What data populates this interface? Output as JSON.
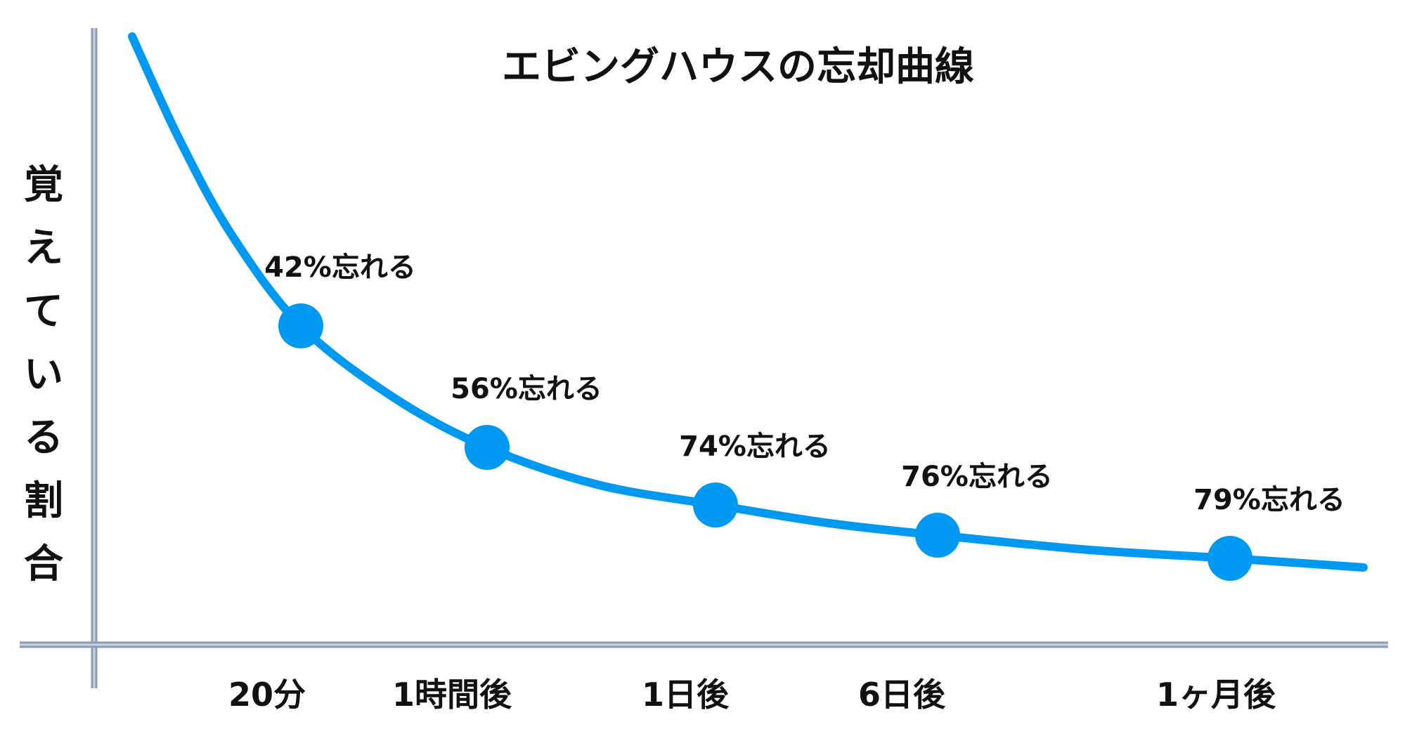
{
  "chart_data": {
    "type": "line",
    "title": "エビングハウスの忘却曲線",
    "ylabel": "覚えている割合",
    "xlabel": "",
    "categories": [
      "20分",
      "1時間後",
      "1日後",
      "6日後",
      "1ヶ月後"
    ],
    "points": [
      {
        "x": "20分",
        "forgotten_percent": 42,
        "label": "42%忘れる"
      },
      {
        "x": "1時間後",
        "forgotten_percent": 56,
        "label": "56%忘れる"
      },
      {
        "x": "1日後",
        "forgotten_percent": 74,
        "label": "74%忘れる"
      },
      {
        "x": "6日後",
        "forgotten_percent": 76,
        "label": "76%忘れる"
      },
      {
        "x": "1ヶ月後",
        "forgotten_percent": 79,
        "label": "79%忘れる"
      }
    ],
    "grid": false,
    "legend": "none",
    "colors": {
      "curve": "#0099f2",
      "axis": "#8e9bb5",
      "axis_core": "#c9d2e4"
    }
  }
}
